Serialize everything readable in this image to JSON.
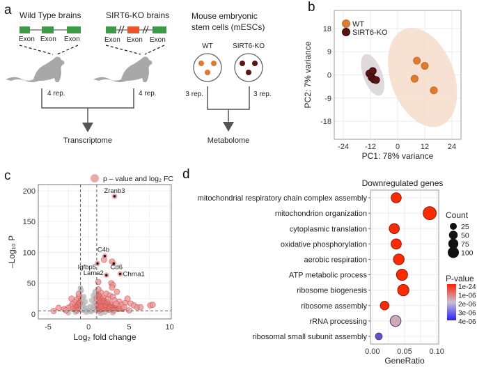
{
  "panels": {
    "a": {
      "letter": "a",
      "wt_brains_title": "Wild Type brains",
      "ko_brains_title": "SIRT6-KO brains",
      "exon_label": "Exon",
      "mesc_title_line1": "Mouse embryonic",
      "mesc_title_line2": "stem cells (mESCs)",
      "wt_label": "WT",
      "ko_label": "SIRT6-KO",
      "rep_brain_wt": "4 rep.",
      "rep_brain_ko": "4 rep.",
      "rep_cell_wt": "3 rep.",
      "rep_cell_ko": "3 rep.",
      "output_left": "Transcriptome",
      "output_right": "Metabolome",
      "colors": {
        "exon": "#3d9b45",
        "ko_exon": "#e8562a",
        "mouse": "#a8a8a8",
        "wt_dot": "#e07b2e",
        "ko_dot": "#5a1414",
        "arrow": "#555555"
      }
    },
    "b": {
      "letter": "b"
    },
    "c": {
      "letter": "c"
    },
    "d": {
      "letter": "d"
    }
  },
  "chart_data": [
    {
      "id": "pca",
      "type": "scatter",
      "title": "",
      "xlabel": "PC1: 78% variance",
      "ylabel": "PC2: 7% variance",
      "xlim": [
        -28,
        28
      ],
      "ylim": [
        -25,
        25
      ],
      "xticks": [
        -24,
        -12,
        0,
        12,
        24
      ],
      "yticks": [
        18,
        9,
        0,
        -9,
        -18
      ],
      "grid": true,
      "legend_position": "top-left",
      "series": [
        {
          "name": "WT",
          "color": "#e07b2e",
          "ellipse_color": "#f6dccb",
          "points": [
            [
              8.5,
              5.5
            ],
            [
              12,
              3.5
            ],
            [
              7.5,
              -1.5
            ],
            [
              16,
              -6
            ]
          ],
          "ellipse": {
            "center": [
              11,
              -1
            ],
            "rx_data": 14,
            "ry_data": 20,
            "angle_deg": -20
          }
        },
        {
          "name": "SIRT6-KO",
          "color": "#5a1414",
          "ellipse_color": "#d9d2d6",
          "points": [
            [
              -12.5,
              0.5
            ],
            [
              -11,
              1.5
            ],
            [
              -11.5,
              -1
            ],
            [
              -10.5,
              -1.8
            ],
            [
              -9.5,
              -2
            ]
          ],
          "ellipse": {
            "center": [
              -11,
              0
            ],
            "rx_data": 4.2,
            "ry_data": 8.5,
            "angle_deg": -20
          }
        }
      ]
    },
    {
      "id": "volcano",
      "type": "scatter",
      "title": "",
      "legend": "p – value and log₂ FC",
      "xlabel": "Log₂ fold change",
      "ylabel": "–Log₁₀ P",
      "xlim": [
        -6.2,
        10.2
      ],
      "ylim": [
        -8,
        210
      ],
      "xticks": [
        -5,
        0,
        5,
        10
      ],
      "yticks": [
        0,
        50,
        100,
        150,
        200
      ],
      "grid": true,
      "fc_cutoff": [
        -1,
        1
      ],
      "p_cutoff_y": 5,
      "labeled_genes": [
        {
          "name": "Zranb3",
          "x": 3.2,
          "y": 191
        },
        {
          "name": "C4b",
          "x": 2.0,
          "y": 94
        },
        {
          "name": "Igfbp5",
          "x": 1.1,
          "y": 82
        },
        {
          "name": "Cd6",
          "x": 3.1,
          "y": 82
        },
        {
          "name": "Lama2",
          "x": 2.2,
          "y": 63
        },
        {
          "name": "Chrna1",
          "x": 3.9,
          "y": 65
        }
      ],
      "significant_points": [
        [
          1.9,
          88
        ],
        [
          2.9,
          85
        ],
        [
          1.2,
          52
        ],
        [
          2.8,
          50
        ],
        [
          3.0,
          47
        ],
        [
          2.9,
          43
        ],
        [
          3.5,
          36
        ],
        [
          1.5,
          35
        ],
        [
          1.3,
          30
        ],
        [
          2.2,
          33
        ],
        [
          2.6,
          30
        ],
        [
          3.0,
          28
        ],
        [
          1.8,
          26
        ],
        [
          2.4,
          24
        ],
        [
          3.2,
          22
        ],
        [
          4.8,
          25
        ],
        [
          3.8,
          20
        ],
        [
          4.5,
          18
        ],
        [
          5.2,
          17
        ],
        [
          5.6,
          14
        ],
        [
          6.0,
          11
        ],
        [
          6.4,
          11
        ],
        [
          7.6,
          14
        ],
        [
          7.9,
          15
        ],
        [
          4.0,
          15
        ],
        [
          3.6,
          13
        ],
        [
          2.9,
          12
        ],
        [
          2.1,
          10
        ],
        [
          1.6,
          8
        ],
        [
          1.3,
          6
        ],
        [
          2.5,
          7
        ],
        [
          3.3,
          9
        ],
        [
          4.2,
          8
        ],
        [
          5.0,
          6
        ],
        [
          1.1,
          15
        ],
        [
          1.4,
          20
        ],
        [
          1.7,
          18
        ],
        [
          2.0,
          14
        ],
        [
          2.7,
          16
        ],
        [
          3.4,
          17
        ],
        [
          1.2,
          10
        ],
        [
          1.5,
          12
        ],
        [
          1.9,
          21
        ],
        [
          2.3,
          19
        ],
        [
          2.6,
          11
        ],
        [
          3.1,
          6
        ],
        [
          3.7,
          8
        ],
        [
          4.4,
          11
        ],
        [
          1.0,
          25
        ],
        [
          1.2,
          40
        ],
        [
          -1.2,
          28
        ],
        [
          -1.5,
          23
        ],
        [
          -1.8,
          20
        ],
        [
          -2.0,
          16
        ],
        [
          -2.2,
          12
        ],
        [
          -2.5,
          10
        ],
        [
          -3.0,
          8
        ],
        [
          -3.7,
          10
        ],
        [
          -4.3,
          5
        ],
        [
          -1.3,
          15
        ],
        [
          -1.6,
          11
        ],
        [
          -1.1,
          18
        ],
        [
          -2.1,
          25
        ],
        [
          -1.4,
          6
        ],
        [
          -1.9,
          8
        ],
        [
          -2.8,
          6
        ],
        [
          -1.2,
          33
        ]
      ],
      "nonsignificant_points": [
        [
          -0.9,
          38
        ],
        [
          0.8,
          36
        ],
        [
          -0.6,
          28
        ],
        [
          0.6,
          30
        ],
        [
          -0.4,
          20
        ],
        [
          0.4,
          22
        ],
        [
          -0.2,
          10
        ],
        [
          0.2,
          12
        ],
        [
          0,
          5
        ],
        [
          -0.7,
          15
        ],
        [
          0.7,
          18
        ],
        [
          -0.5,
          8
        ],
        [
          0.5,
          9
        ],
        [
          -0.8,
          25
        ],
        [
          0.9,
          27
        ],
        [
          -0.3,
          3
        ],
        [
          0.3,
          4
        ],
        [
          -1.0,
          42
        ],
        [
          -1.6,
          3
        ],
        [
          2,
          3
        ],
        [
          3,
          2
        ],
        [
          -2.5,
          2
        ],
        [
          1.5,
          1
        ]
      ],
      "colors": {
        "significant": "#d9534f",
        "significant_fill": "#e89a9a",
        "nonsignificant": "#b8b8b8",
        "labeled": "#1a1a1a"
      }
    },
    {
      "id": "go-dotplot",
      "type": "scatter",
      "title": "Downregulated genes",
      "xlabel": "GeneRatio",
      "ylabel": "",
      "xlim": [
        -0.003,
        0.103
      ],
      "xticks": [
        0.0,
        0.05,
        0.1
      ],
      "xtick_labels": [
        "0.00",
        "0.05",
        "0.10"
      ],
      "grid": true,
      "categories": [
        "mitochondrial respiratory chain complex assembly",
        "mitochondrion organization",
        "cytoplasmic translation",
        "oxidative phosphorylation",
        "aerobic respiration",
        "ATP metabolic process",
        "ribosome biogenesis",
        "ribosome assembly",
        "rRNA processing",
        "ribosomal small subunit assembly"
      ],
      "gene_ratio": [
        0.037,
        0.089,
        0.034,
        0.037,
        0.041,
        0.046,
        0.048,
        0.019,
        0.036,
        0.01
      ],
      "count": [
        40,
        85,
        40,
        42,
        48,
        55,
        56,
        25,
        50,
        10
      ],
      "p_value": [
        1e-24,
        1e-24,
        1e-24,
        1e-24,
        1e-24,
        1e-24,
        1e-24,
        1e-10,
        2.2e-06,
        3.7e-06
      ],
      "size_legend": {
        "title": "Count",
        "values": [
          25,
          50,
          75,
          100
        ]
      },
      "color_legend": {
        "title": "P-value",
        "labels": [
          "1e-24",
          "1e-06",
          "2e-06",
          "3e-06",
          "4e-06"
        ],
        "low_color": "#ff2200",
        "mid_color": "#c8bfd6",
        "high_color": "#2a1cff"
      }
    }
  ]
}
